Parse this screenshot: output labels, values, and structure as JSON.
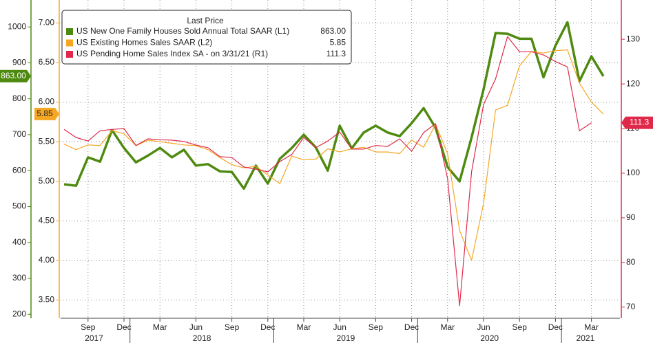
{
  "chart_data": {
    "type": "line",
    "legend_title": "Last Price",
    "x": [
      "2017-07",
      "2017-08",
      "2017-09",
      "2017-10",
      "2017-11",
      "2017-12",
      "2018-01",
      "2018-02",
      "2018-03",
      "2018-04",
      "2018-05",
      "2018-06",
      "2018-07",
      "2018-08",
      "2018-09",
      "2018-10",
      "2018-11",
      "2018-12",
      "2019-01",
      "2019-02",
      "2019-03",
      "2019-04",
      "2019-05",
      "2019-06",
      "2019-07",
      "2019-08",
      "2019-09",
      "2019-10",
      "2019-11",
      "2019-12",
      "2020-01",
      "2020-02",
      "2020-03",
      "2020-04",
      "2020-05",
      "2020-06",
      "2020-07",
      "2020-08",
      "2020-09",
      "2020-10",
      "2020-11",
      "2020-12",
      "2021-01",
      "2021-02",
      "2021-03",
      "2021-04"
    ],
    "xticks": [
      {
        "value": "2017-09",
        "label": "Sep"
      },
      {
        "value": "2017-12",
        "label": "Dec"
      },
      {
        "value": "2018-03",
        "label": "Mar"
      },
      {
        "value": "2018-06",
        "label": "Jun"
      },
      {
        "value": "2018-09",
        "label": "Sep"
      },
      {
        "value": "2018-12",
        "label": "Dec"
      },
      {
        "value": "2019-03",
        "label": "Mar"
      },
      {
        "value": "2019-06",
        "label": "Jun"
      },
      {
        "value": "2019-09",
        "label": "Sep"
      },
      {
        "value": "2019-12",
        "label": "Dec"
      },
      {
        "value": "2020-03",
        "label": "Mar"
      },
      {
        "value": "2020-06",
        "label": "Jun"
      },
      {
        "value": "2020-09",
        "label": "Sep"
      },
      {
        "value": "2020-12",
        "label": "Dec"
      },
      {
        "value": "2021-03",
        "label": "Mar"
      }
    ],
    "xgroups": [
      "2017",
      "2018",
      "2019",
      "2020",
      "2021"
    ],
    "ylim": [
      189,
      1075
    ],
    "yticks": [
      200,
      300,
      400,
      500,
      600,
      700,
      800,
      900,
      1000
    ],
    "y2lim": [
      3.27,
      7.29
    ],
    "y2ticks": [
      {
        "value": 3.5,
        "label": "3.50"
      },
      {
        "value": 4,
        "label": "4.00"
      },
      {
        "value": 4.5,
        "label": "4.50"
      },
      {
        "value": 5,
        "label": "5.00"
      },
      {
        "value": 5.5,
        "label": "5.50"
      },
      {
        "value": 6,
        "label": "6.00"
      },
      {
        "value": 6.5,
        "label": "6.50"
      },
      {
        "value": 7,
        "label": "7.00"
      }
    ],
    "y3lim": [
      67.5,
      138.8
    ],
    "y3ticks": [
      70,
      80,
      90,
      100,
      110,
      120,
      130
    ],
    "grid": true,
    "legend": "upper left",
    "series": [
      {
        "name": "US New One Family Houses Sold Annual Total SAAR  (L1)",
        "color": "#4f8a10",
        "axis": "y",
        "values": [
          562,
          558,
          637,
          625,
          713,
          663,
          623,
          642,
          663,
          637,
          658,
          614,
          618,
          598,
          596,
          550,
          614,
          564,
          633,
          663,
          700,
          665,
          600,
          725,
          662,
          706,
          725,
          706,
          696,
          732,
          774,
          719,
          610,
          570,
          692,
          826,
          983,
          981,
          967,
          967,
          860,
          948,
          1013,
          849,
          918,
          863
        ],
        "value_labels": [
          null,
          null,
          null,
          null,
          null,
          null,
          null,
          null,
          null,
          null,
          null,
          null,
          null,
          null,
          null,
          null,
          null,
          null,
          null,
          null,
          null,
          null,
          null,
          null,
          null,
          null,
          null,
          null,
          null,
          null,
          null,
          null,
          null,
          null,
          null,
          null,
          null,
          null,
          null,
          null,
          null,
          null,
          null,
          null,
          null,
          "863.00"
        ]
      },
      {
        "name": "US Existing Homes Sales SAAR  (L2)",
        "color": "#f5a623",
        "axis": "y2",
        "values": [
          5.47,
          5.4,
          5.46,
          5.45,
          5.64,
          5.6,
          5.45,
          5.52,
          5.5,
          5.48,
          5.46,
          5.45,
          5.4,
          5.3,
          5.21,
          5.17,
          5.19,
          5.08,
          4.97,
          5.32,
          5.27,
          5.28,
          5.41,
          5.37,
          5.41,
          5.43,
          5.37,
          5.37,
          5.35,
          5.52,
          5.43,
          5.72,
          5.35,
          4.38,
          4.0,
          4.72,
          5.9,
          5.96,
          6.46,
          6.64,
          6.62,
          6.65,
          6.66,
          6.24,
          6.0,
          5.85
        ]
      },
      {
        "name": "US Pending Home Sales Index SA -  on 3/31/21  (R1)",
        "color": "#e0294a",
        "axis": "y3",
        "values": [
          109.8,
          108.0,
          107.2,
          109.5,
          109.8,
          110.0,
          106.2,
          107.7,
          107.5,
          107.4,
          107.1,
          106.3,
          105.7,
          103.7,
          103.5,
          101.4,
          100.9,
          100.3,
          102.6,
          104.2,
          108.0,
          105.7,
          107.2,
          109.2,
          105.4,
          105.4,
          106.2,
          106.0,
          107.7,
          104.9,
          109.1,
          111.1,
          98.8,
          70.3,
          100.3,
          115.4,
          121.1,
          130.6,
          127.2,
          127.2,
          126.5,
          125.0,
          123.8,
          109.5,
          111.3,
          null
        ]
      }
    ]
  }
}
